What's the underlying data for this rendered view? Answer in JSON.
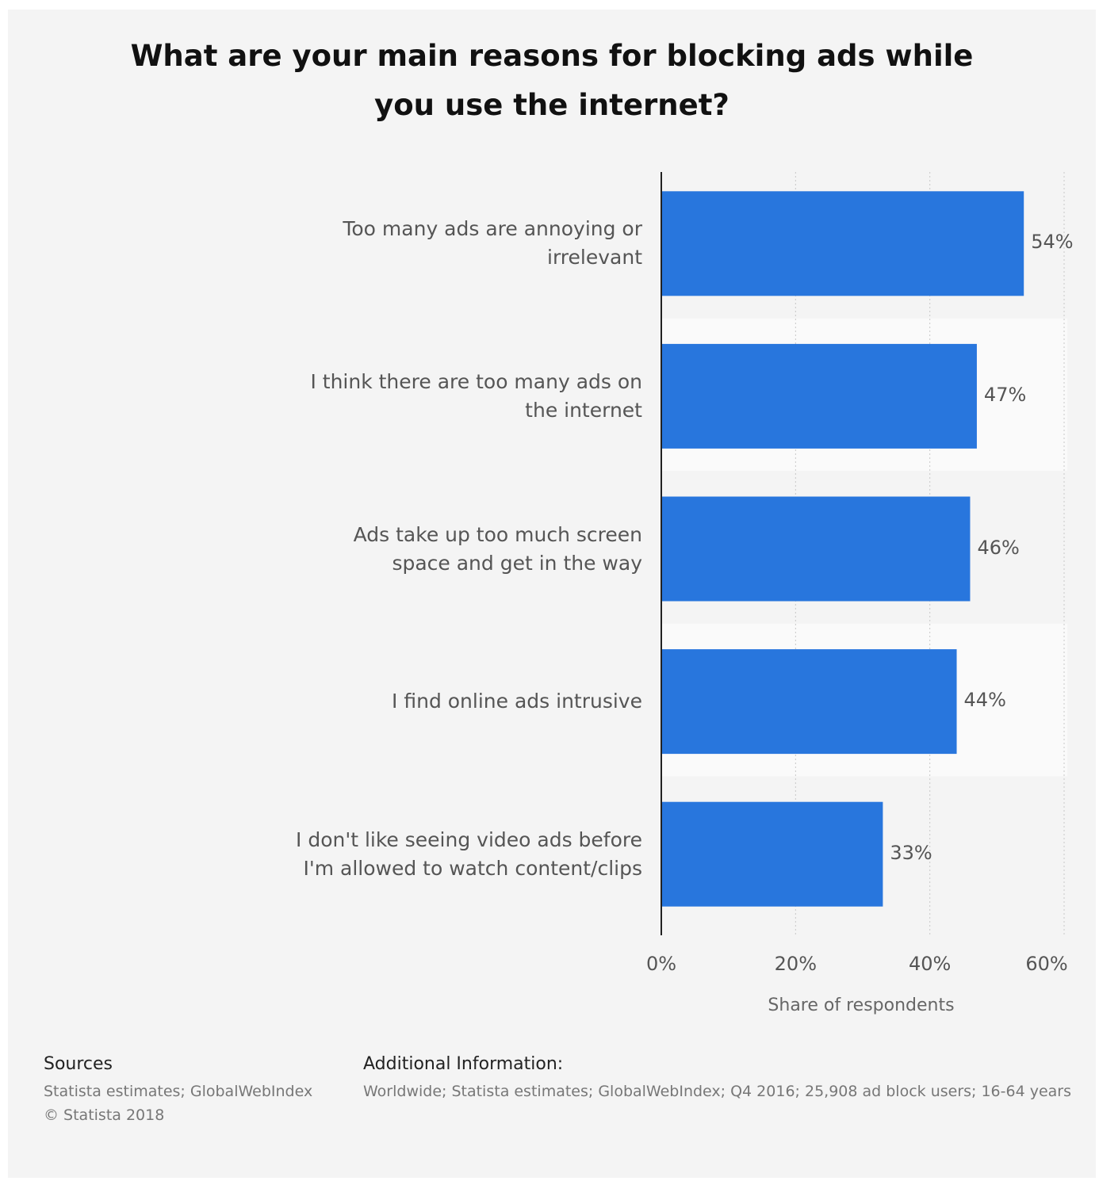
{
  "chart_data": {
    "type": "bar",
    "orientation": "horizontal",
    "title": "What are your main reasons for blocking ads while you use the internet?",
    "categories": [
      "Too many ads are annoying or irrelevant",
      "I think there are too many ads on the internet",
      "Ads take up too much screen space and get in the way",
      "I find online ads intrusive",
      "I don't like seeing video ads before I'm allowed to watch content/clips"
    ],
    "values": [
      54,
      47,
      46,
      44,
      33
    ],
    "value_labels": [
      "54%",
      "47%",
      "46%",
      "44%",
      "33%"
    ],
    "xlabel": "Share of respondents",
    "ylabel": "",
    "xlim": [
      0,
      60
    ],
    "ticks": [
      "0%",
      "20%",
      "40%",
      "60%"
    ],
    "grid": true,
    "bar_color": "#2876dd"
  },
  "footer": {
    "sources_heading": "Sources",
    "sources_lines": [
      "Statista estimates; GlobalWebIndex",
      "© Statista 2018"
    ],
    "additional_heading": "Additional Information:",
    "additional_text": "Worldwide; Statista estimates; GlobalWebIndex; Q4 2016; 25,908 ad block users; 16-64 years"
  }
}
